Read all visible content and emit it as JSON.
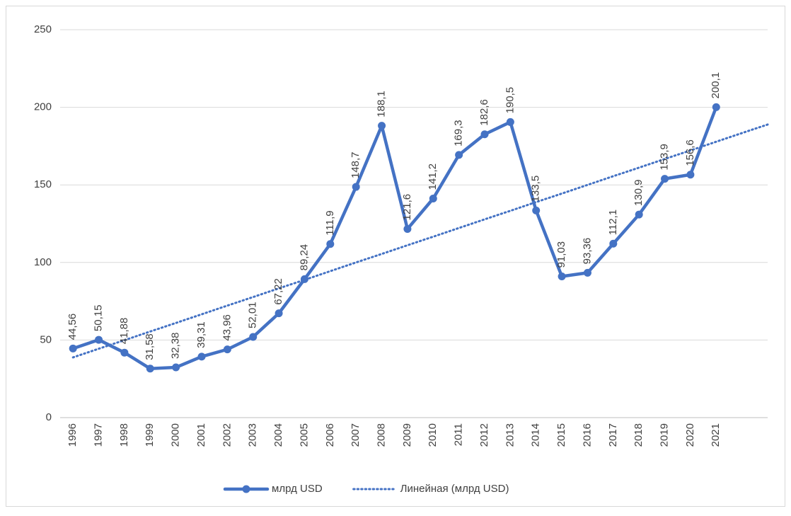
{
  "chart_data": {
    "type": "line",
    "categories": [
      "1996",
      "1997",
      "1998",
      "1999",
      "2000",
      "2001",
      "2002",
      "2003",
      "2004",
      "2005",
      "2006",
      "2007",
      "2008",
      "2009",
      "2010",
      "2011",
      "2012",
      "2013",
      "2014",
      "2015",
      "2016",
      "2017",
      "2018",
      "2019",
      "2020",
      "2021",
      null,
      null
    ],
    "series": [
      {
        "name": "млрд USD",
        "color": "#4472c4",
        "style": "solid",
        "markers": true,
        "values": [
          44.56,
          50.15,
          41.88,
          31.58,
          32.38,
          39.31,
          43.96,
          52.01,
          67.22,
          89.24,
          111.9,
          148.7,
          188.1,
          121.6,
          141.2,
          169.3,
          182.6,
          190.5,
          133.5,
          91.03,
          93.36,
          112.1,
          130.9,
          153.9,
          156.6,
          200.1,
          null,
          null
        ],
        "value_labels": [
          "44,56",
          "50,15",
          "41,88",
          "31,58",
          "32,38",
          "39,31",
          "43,96",
          "52,01",
          "67,22",
          "89,24",
          "111,9",
          "148,7",
          "188,1",
          "121,6",
          "141,2",
          "169,3",
          "182,6",
          "190,5",
          "133,5",
          "91,03",
          "93,36",
          "112,1",
          "130,9",
          "153,9",
          "156,6",
          "200,1",
          null,
          null
        ]
      },
      {
        "name": "Линейная (млрд USD)",
        "color": "#4472c4",
        "style": "dotted",
        "markers": false,
        "values": [
          38.8,
          44.4,
          49.9,
          55.5,
          61.0,
          66.6,
          72.2,
          77.7,
          83.3,
          88.8,
          94.4,
          100.0,
          105.5,
          111.1,
          116.6,
          122.2,
          127.8,
          133.3,
          138.9,
          144.4,
          150.0,
          155.6,
          161.1,
          166.7,
          172.2,
          177.8,
          183.4,
          188.9
        ]
      }
    ],
    "ylim": [
      0,
      250
    ],
    "yticks": [
      0,
      50,
      100,
      150,
      200,
      250
    ],
    "grid": true,
    "legend": "bottom"
  }
}
